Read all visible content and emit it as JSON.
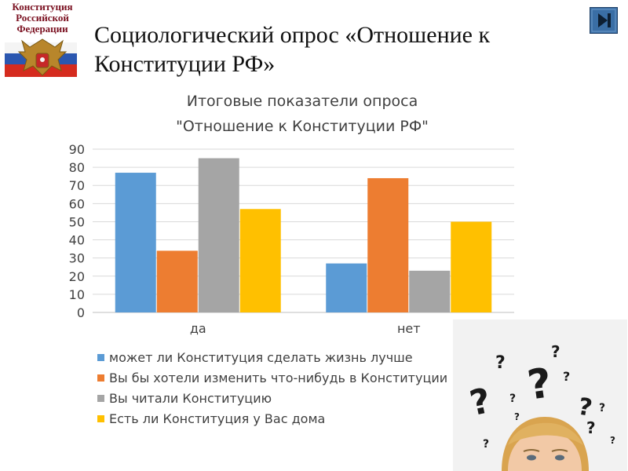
{
  "logo": {
    "lines": [
      "Конституция",
      "Российской",
      "Федерации"
    ]
  },
  "slide": {
    "title_line1": "Социологический опрос «Отношение к",
    "title_line2": "Конституции РФ»"
  },
  "nav": {
    "icon": "play-next-icon"
  },
  "colors": {
    "grid": "#d9d9d9",
    "axis": "#bfbfbf",
    "text": "#404040",
    "nav": "#3a6ea5"
  },
  "chart_data": {
    "type": "bar",
    "title": "Итоговые показатели опроса",
    "subtitle": "\"Отношение к Конституции РФ\"",
    "categories": [
      "да",
      "нет"
    ],
    "series": [
      {
        "name": "может ли Конституция сделать жизнь лучше",
        "color": "#5b9bd5",
        "values": [
          77,
          27
        ]
      },
      {
        "name": "Вы бы хотели изменить что-нибудь в Конституции",
        "color": "#ed7d31",
        "values": [
          34,
          74
        ]
      },
      {
        "name": "Вы читали Конституцию",
        "color": "#a5a5a5",
        "values": [
          85,
          23
        ]
      },
      {
        "name": "Есть ли Конституция у Вас дома",
        "color": "#ffc000",
        "values": [
          57,
          50
        ]
      }
    ],
    "ylim": [
      0,
      90
    ],
    "yticks": [
      0,
      10,
      20,
      30,
      40,
      50,
      60,
      70,
      80,
      90
    ],
    "grid": true,
    "legend": "bottom"
  }
}
